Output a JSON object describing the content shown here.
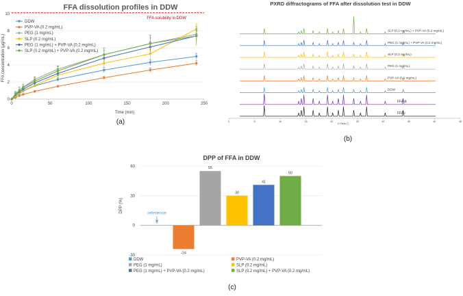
{
  "colors": {
    "ddw": "#4e9bd5",
    "pvpva": "#ed7d31",
    "peg": "#a5a5a5",
    "slp": "#ffc000",
    "peg_pvpva": "#4472c4",
    "slp_pvpva": "#70ad47",
    "ffa_iii": "#7030a0",
    "ffa_i": "#262626",
    "solubility": "#e00000"
  },
  "chart_data": [
    {
      "type": "line",
      "panel_label": "(a)",
      "title": "FFA dissolution profiles in DDW",
      "xlabel": "Time (min)",
      "ylabel": "FFA concentration (µg/mL)",
      "xlim": [
        0,
        250
      ],
      "ylim": [
        0,
        10
      ],
      "x_ticks": [
        "0",
        "50",
        "100",
        "150",
        "200",
        "250"
      ],
      "y_ticks": [
        "0",
        "2",
        "4",
        "6",
        "8",
        "10"
      ],
      "solubility_line": {
        "value": 10.1,
        "label": "FFA solubility in DDW"
      },
      "x": [
        0,
        5,
        10,
        15,
        30,
        60,
        120,
        180,
        240
      ],
      "series": [
        {
          "key": "ddw",
          "name": "DDW",
          "values": [
            0,
            0.35,
            0.65,
            0.95,
            1.55,
            2.3,
            3.4,
            4.3,
            5.0
          ],
          "errors": [
            0,
            0.1,
            0.1,
            0.1,
            0.15,
            0.2,
            0.3,
            0.35,
            0.35
          ]
        },
        {
          "key": "pvpva",
          "name": "PVP-VA (0.2 mg/mL)",
          "values": [
            0,
            0.2,
            0.4,
            0.55,
            0.9,
            1.5,
            2.5,
            3.4,
            4.2
          ],
          "errors": [
            0,
            0.05,
            0.05,
            0.1,
            0.1,
            0.1,
            0.15,
            0.25,
            0.3
          ]
        },
        {
          "key": "peg",
          "name": "PEG (1 mg/mL)",
          "values": [
            0,
            0.65,
            1.0,
            1.4,
            2.3,
            3.5,
            5.2,
            6.5,
            7.6
          ],
          "errors": [
            0,
            0.15,
            0.2,
            0.2,
            0.25,
            0.3,
            0.5,
            0.7,
            0.7
          ]
        },
        {
          "key": "slp",
          "name": "SLP (0.2 mg/mL)",
          "values": [
            0,
            0.4,
            0.7,
            1.0,
            1.6,
            2.8,
            4.2,
            5.3,
            8.2
          ],
          "errors": [
            0,
            0.1,
            0.15,
            0.15,
            0.2,
            0.3,
            0.45,
            0.5,
            0.6
          ]
        },
        {
          "key": "peg_pvpva",
          "name": "PEG (1 mg/mL) + PVP-VA (0.2 mg/mL)",
          "values": [
            0,
            0.5,
            0.85,
            1.15,
            1.9,
            3.0,
            4.8,
            6.1,
            7.4
          ],
          "errors": [
            0,
            0.1,
            0.15,
            0.15,
            0.2,
            0.3,
            0.45,
            0.6,
            0.6
          ]
        },
        {
          "key": "slp_pvpva",
          "name": "SLP (0.2 mg/mL) + PVP-VA (0.2 mg/mL)",
          "values": [
            0,
            0.6,
            1.0,
            1.35,
            2.1,
            3.3,
            5.2,
            6.5,
            7.4
          ],
          "errors": [
            0,
            0.3,
            0.4,
            0.4,
            0.5,
            0.6,
            0.8,
            1.0,
            1.1
          ]
        }
      ]
    },
    {
      "type": "line",
      "panel_label": "(b)",
      "title": "PXRD diffractograms of FFA after dissolution test in DDW",
      "xlabel": "2-Theta (°)",
      "xlim": [
        0,
        45
      ],
      "x_ticks": [
        "0",
        "5",
        "10",
        "15",
        "20",
        "25",
        "30",
        "35",
        "40",
        "45"
      ],
      "peaks": [
        6.9,
        13.6,
        14.1,
        14.6,
        16.4,
        17.6,
        19.2,
        20.2,
        21.3,
        22.3,
        24.3,
        25.6,
        26.8,
        30.4,
        33.9
      ],
      "traces": [
        {
          "key": "slp_pvpva",
          "label": "SLP (0.2 mg/mL) + PVP-VA (0.2 mg/mL)",
          "big_peak": 24.3
        },
        {
          "key": "peg_pvpva",
          "label": "PEG (1 mg/mL) + PVP-VA (0.2 mg/mL)",
          "big_peak": null
        },
        {
          "key": "slp",
          "label": "SLP (0.2 mg/mL)",
          "big_peak": null
        },
        {
          "key": "peg",
          "label": "PEG (1 mg/mL)",
          "big_peak": null
        },
        {
          "key": "pvpva",
          "label": "PVP-VA (0.2 mg/mL)",
          "big_peak": null
        },
        {
          "key": "ddw",
          "label": "DDW",
          "big_peak": null
        },
        {
          "key": "ffa_iii",
          "label": "FFA Ⅲ",
          "big_peak": null
        },
        {
          "key": "ffa_i",
          "label": "FFA Ⅰ",
          "big_peak": null
        }
      ]
    },
    {
      "type": "bar",
      "panel_label": "(c)",
      "title": "DPP of FFA in DDW",
      "ylabel": "DPP (%)",
      "ylim": [
        -30,
        60
      ],
      "y_ticks": [
        "60",
        "30",
        "0",
        "-30"
      ],
      "annotation": "reference",
      "categories": [
        "DDW",
        "PVP-VA (0.2 mg/mL)",
        "PEG (1 mg/mL)",
        "SLP (0.2 mg/mL)",
        "PEG (1 mg/mL) + PVP-VA (0.2 mg/mL)",
        "SLP (0.2 mg/mL) + PVP-VA (0.2 mg/mL)"
      ],
      "keys": [
        "ddw",
        "pvpva",
        "peg",
        "slp",
        "peg_pvpva",
        "slp_pvpva"
      ],
      "values": [
        0,
        -24,
        55,
        30,
        41,
        50
      ],
      "value_labels": [
        "0",
        "-24",
        "55",
        "30",
        "41",
        "50"
      ]
    }
  ]
}
